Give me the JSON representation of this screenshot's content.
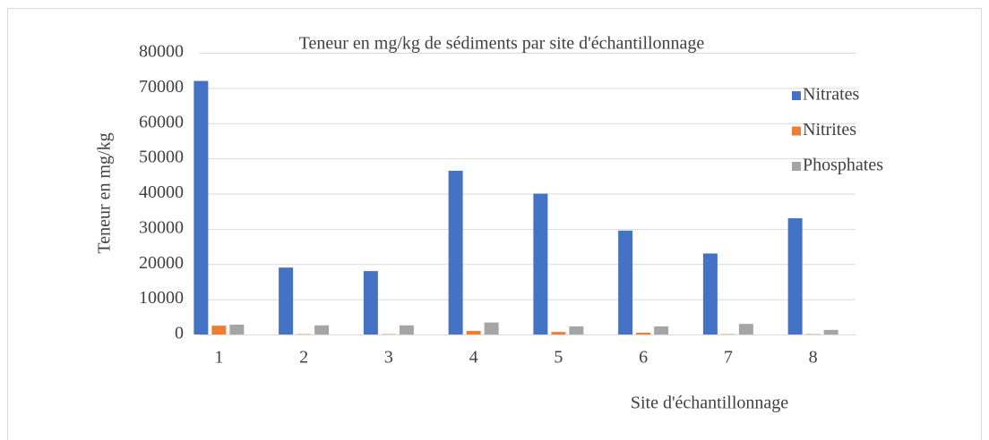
{
  "chart_data": {
    "type": "bar",
    "title": "Teneur en mg/kg de sédiments par site d'échantillonnage",
    "x_label": "Site d'échantillonnage",
    "y_label": "Teneur en mg/kg",
    "categories": [
      "1",
      "2",
      "3",
      "4",
      "5",
      "6",
      "7",
      "8"
    ],
    "series": [
      {
        "name": "Nitrates",
        "color": "#4472c4",
        "values": [
          72000,
          19000,
          18000,
          46500,
          40000,
          29500,
          23000,
          33000
        ]
      },
      {
        "name": "Nitrites",
        "color": "#ed7d31",
        "values": [
          2500,
          100,
          100,
          1000,
          700,
          500,
          100,
          100
        ]
      },
      {
        "name": "Phosphates",
        "color": "#a5a5a5",
        "values": [
          2800,
          2600,
          2600,
          3400,
          2300,
          2300,
          3000,
          1300
        ]
      }
    ],
    "ylim": [
      0,
      80000
    ],
    "yticks": [
      0,
      10000,
      20000,
      30000,
      40000,
      50000,
      60000,
      70000,
      80000
    ],
    "grid": true,
    "legend": "right"
  }
}
